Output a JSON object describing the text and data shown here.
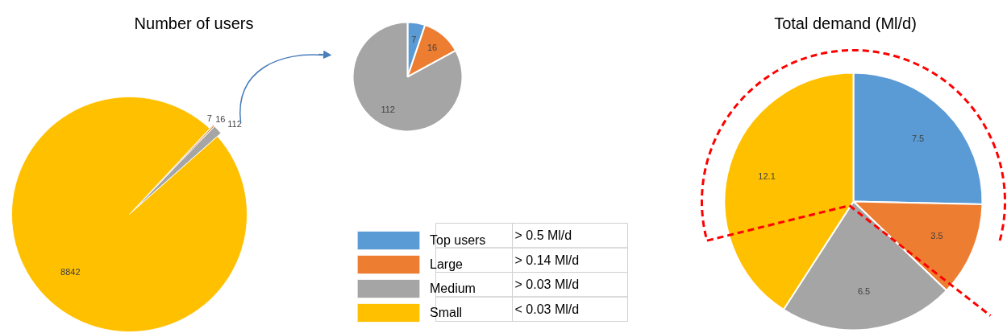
{
  "chart_data": [
    {
      "type": "pie",
      "title": "Number of users",
      "categories": [
        "Top users",
        "Large",
        "Medium",
        "Small"
      ],
      "values": [
        7,
        16,
        112,
        8842
      ],
      "colors": [
        "#5b9bd5",
        "#ed7d31",
        "#a5a5a5",
        "#ffc000"
      ],
      "data_labels": true,
      "legend": "right",
      "annotations": [
        "> 0.5 Ml/d",
        "> 0.14 Ml/d",
        "> 0.03 Ml/d",
        "< 0.03 Ml/d"
      ]
    },
    {
      "type": "pie",
      "values": [
        7,
        16,
        112
      ],
      "colors": [
        "#5b9bd5",
        "#ed7d31",
        "#a5a5a5"
      ],
      "data_labels": true
    },
    {
      "type": "pie",
      "title": "Total demand (Ml/d)",
      "values": [
        7.5,
        3.5,
        6.5,
        12.1
      ],
      "colors": [
        "#5b9bd5",
        "#ed7d31",
        "#a5a5a5",
        "#ffc000"
      ],
      "data_labels": true
    }
  ]
}
